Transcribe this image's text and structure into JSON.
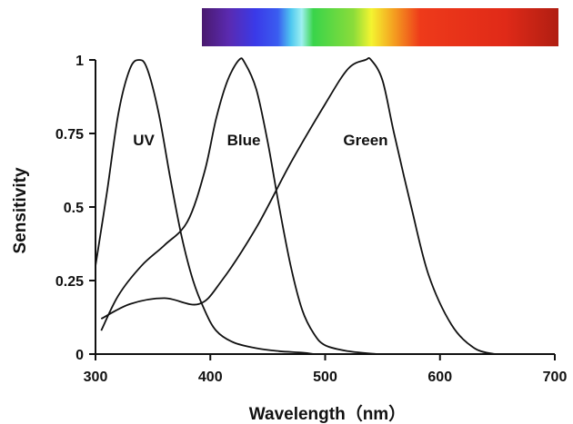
{
  "chart_data": {
    "type": "line",
    "xlabel": "Wavelength（nm）",
    "ylabel": "Sensitivity",
    "xlim": [
      300,
      700
    ],
    "ylim": [
      0,
      1
    ],
    "x_ticks": [
      300,
      400,
      500,
      600,
      700
    ],
    "x_tick_labels": [
      "300",
      "400",
      "500",
      "600",
      "700"
    ],
    "y_ticks": [
      0,
      0.25,
      0.5,
      0.75,
      1
    ],
    "y_tick_labels": [
      "0",
      "0.25",
      "0.5",
      "0.75",
      "1"
    ],
    "grid": false,
    "spectrum_bar": {
      "range": [
        300,
        700
      ],
      "stops": [
        {
          "nm": 300,
          "color": "#4a1a6e"
        },
        {
          "nm": 330,
          "color": "#5a2ab0"
        },
        {
          "nm": 360,
          "color": "#3a3ae8"
        },
        {
          "nm": 385,
          "color": "#3a5cf0"
        },
        {
          "nm": 400,
          "color": "#4fc8f0"
        },
        {
          "nm": 412,
          "color": "#9ef0f0"
        },
        {
          "nm": 425,
          "color": "#39d44a"
        },
        {
          "nm": 470,
          "color": "#8bdc3a"
        },
        {
          "nm": 490,
          "color": "#f4f430"
        },
        {
          "nm": 515,
          "color": "#f4a020"
        },
        {
          "nm": 545,
          "color": "#ee3a1a"
        },
        {
          "nm": 640,
          "color": "#e02a18"
        },
        {
          "nm": 700,
          "color": "#b01e12"
        }
      ]
    },
    "series": [
      {
        "name": "UV",
        "x": [
          300,
          310,
          320,
          330,
          338,
          345,
          355,
          365,
          375,
          385,
          395,
          405,
          420,
          440,
          460,
          480,
          490
        ],
        "y": [
          0.3,
          0.55,
          0.82,
          0.97,
          1.0,
          0.97,
          0.82,
          0.6,
          0.4,
          0.25,
          0.15,
          0.08,
          0.04,
          0.02,
          0.01,
          0.005,
          0.0
        ]
      },
      {
        "name": "Blue",
        "x": [
          305,
          320,
          340,
          360,
          380,
          395,
          405,
          415,
          425,
          430,
          440,
          450,
          460,
          470,
          480,
          490,
          500,
          520,
          545
        ],
        "y": [
          0.08,
          0.2,
          0.3,
          0.37,
          0.45,
          0.62,
          0.8,
          0.93,
          1.0,
          0.99,
          0.9,
          0.72,
          0.5,
          0.3,
          0.15,
          0.07,
          0.03,
          0.01,
          0.0
        ]
      },
      {
        "name": "Green",
        "x": [
          305,
          330,
          360,
          390,
          410,
          440,
          470,
          500,
          520,
          535,
          540,
          550,
          560,
          575,
          590,
          610,
          630,
          648
        ],
        "y": [
          0.12,
          0.17,
          0.19,
          0.17,
          0.25,
          0.43,
          0.65,
          0.85,
          0.97,
          1.0,
          1.0,
          0.93,
          0.75,
          0.5,
          0.27,
          0.1,
          0.02,
          0.0
        ]
      }
    ]
  }
}
